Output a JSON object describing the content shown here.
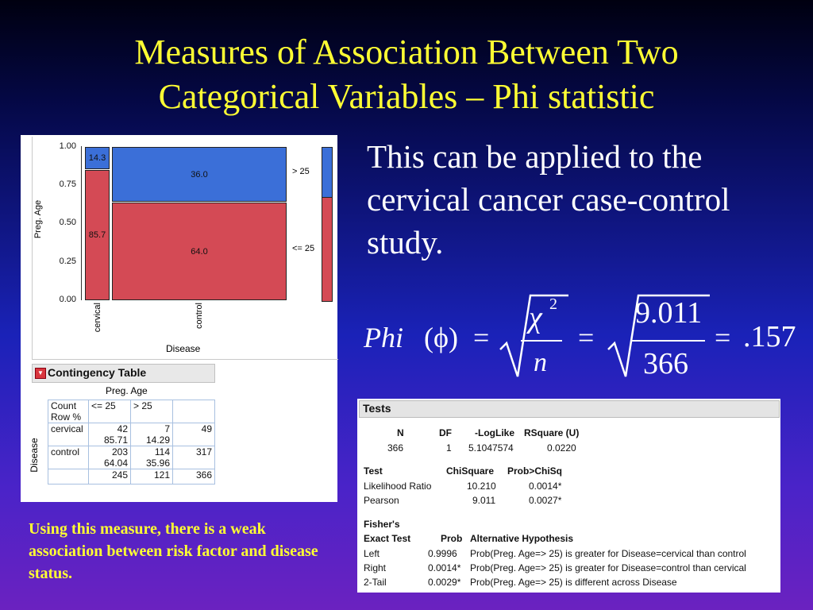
{
  "slide": {
    "title_line1": "Measures of Association Between Two",
    "title_line2": "Categorical Variables – Phi statistic",
    "intro": "This can be applied to the cervical cancer case-control study.",
    "note": "Using this measure, there is a weak association between risk factor and disease status."
  },
  "formula": {
    "lhs_word": "Phi",
    "lhs_paren": "(ϕ)",
    "equals": "=",
    "chi": "χ",
    "sup": "2",
    "denom_n": "n",
    "num_val": "9.011",
    "den_val": "366",
    "result": ".157"
  },
  "mosaic": {
    "y_axis_label": "Preg. Age",
    "x_axis_label": "Disease",
    "y_ticks": [
      "1.00",
      "0.75",
      "0.50",
      "0.25",
      "0.00"
    ],
    "categories": [
      "cervical",
      "control"
    ],
    "legend": [
      "> 25",
      "<= 25"
    ],
    "cells": {
      "cervical_gt25": "14.3",
      "cervical_le25": "85.7",
      "control_gt25": "36.0",
      "control_le25": "64.0"
    },
    "colors": {
      "gt25": "#3b6fd8",
      "le25": "#d44a55"
    }
  },
  "contingency": {
    "title": "Contingency Table",
    "col_group": "Preg. Age",
    "row_group": "Disease",
    "labels": [
      "Count",
      "Row %"
    ],
    "col_headers": [
      "<= 25",
      "> 25"
    ],
    "rows": [
      {
        "name": "cervical",
        "c1": "42",
        "c1p": "85.71",
        "c2": "7",
        "c2p": "14.29",
        "total": "49"
      },
      {
        "name": "control",
        "c1": "203",
        "c1p": "64.04",
        "c2": "114",
        "c2p": "35.96",
        "total": "317"
      }
    ],
    "totals": {
      "c1": "245",
      "c2": "121",
      "all": "366"
    }
  },
  "tests": {
    "title": "Tests",
    "h1": [
      "N",
      "DF",
      "-LogLike",
      "RSquare (U)"
    ],
    "r1": [
      "366",
      "1",
      "5.1047574",
      "0.0220"
    ],
    "h2": [
      "Test",
      "ChiSquare",
      "Prob>ChiSq"
    ],
    "lr": [
      "Likelihood Ratio",
      "10.210",
      "0.0014*"
    ],
    "pearson": [
      "Pearson",
      "9.011",
      "0.0027*"
    ],
    "fisher_l1": "Fisher's",
    "fisher_l2": "Exact Test",
    "h3": [
      "Prob",
      "Alternative Hypothesis"
    ],
    "left": [
      "Left",
      "0.9996",
      "Prob(Preg. Age=> 25) is greater for Disease=cervical than control"
    ],
    "right": [
      "Right",
      "0.0014*",
      "Prob(Preg. Age=> 25) is greater for Disease=control than cervical"
    ],
    "two": [
      "2-Tail",
      "0.0029*",
      "Prob(Preg. Age=> 25) is different across Disease"
    ]
  }
}
